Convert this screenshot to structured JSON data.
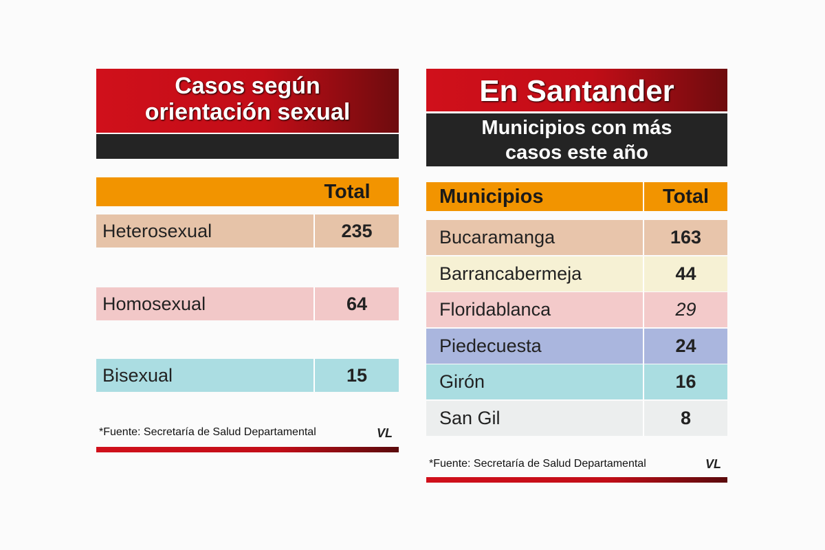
{
  "left": {
    "title_lines": [
      "Casos según",
      "orientación sexual"
    ],
    "table": {
      "header": [
        "Total"
      ],
      "rows": [
        [
          "Heterosexual",
          235
        ],
        [
          "Homosexual",
          64
        ],
        [
          "Bisexual",
          15
        ]
      ]
    },
    "source": "*Fuente: Secretaría de Salud Departamental",
    "logo": "VL"
  },
  "right": {
    "title": "En Santander",
    "subtitle_lines": [
      "Municipios con más",
      "casos este año"
    ],
    "table": {
      "header": [
        "Municipios",
        "Total"
      ],
      "rows": [
        [
          "Bucaramanga",
          163
        ],
        [
          "Barrancabermeja",
          44
        ],
        [
          "Floridablanca",
          29
        ],
        [
          "Piedecuesta",
          24
        ],
        [
          "Girón",
          16
        ],
        [
          "San Gil",
          8
        ]
      ]
    },
    "source": "*Fuente: Secretaría de Salud Departamental",
    "logo": "VL"
  }
}
